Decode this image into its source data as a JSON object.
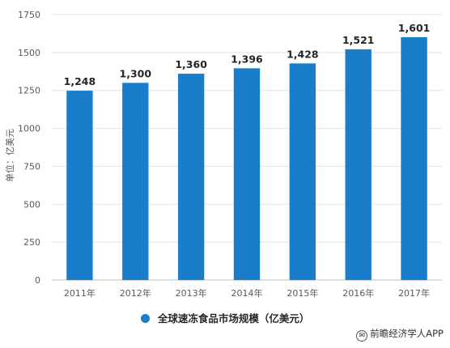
{
  "colors": {
    "bar": "#1a7dc9",
    "grid": "#e3e3e3",
    "axis": "#bfbfbf"
  },
  "chart_data": {
    "type": "bar",
    "categories": [
      "2011年",
      "2012年",
      "2013年",
      "2014年",
      "2015年",
      "2016年",
      "2017年"
    ],
    "values": [
      1248,
      1300,
      1360,
      1396,
      1428,
      1521,
      1601
    ],
    "data_labels": [
      "1,248",
      "1,300",
      "1,360",
      "1,396",
      "1,428",
      "1,521",
      "1,601"
    ],
    "ylabel": "单位：亿美元",
    "ylim": [
      0,
      1750
    ],
    "yticks": [
      0,
      250,
      500,
      750,
      1000,
      1250,
      1500,
      1750
    ],
    "grid": true,
    "legend": {
      "position": "bottom",
      "entries": [
        "全球速冻食品市场规模（亿美元）"
      ]
    }
  },
  "footer": {
    "source_icon": "wechat-icon",
    "source_text": "前瞻经济学人APP"
  }
}
